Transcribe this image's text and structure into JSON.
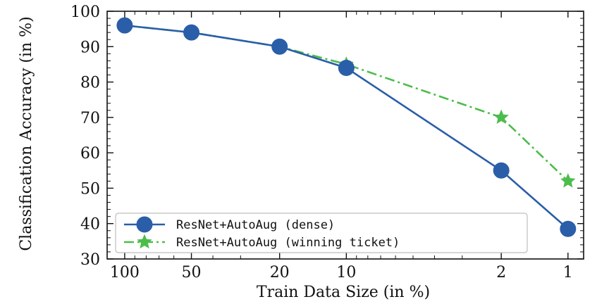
{
  "chart_data": {
    "type": "line",
    "title": "",
    "xlabel": "Train Data Size (in %)",
    "ylabel": "Classification Accuracy (in %)",
    "x_scale": "log-reversed",
    "xlim": [
      120,
      0.85
    ],
    "ylim": [
      30,
      100
    ],
    "x_ticks": [
      100,
      50,
      20,
      10,
      2,
      1
    ],
    "y_ticks": [
      30,
      40,
      50,
      60,
      70,
      80,
      90,
      100
    ],
    "grid": false,
    "legend_position": "lower-left",
    "x": [
      100,
      50,
      20,
      10,
      2,
      1
    ],
    "series": [
      {
        "name": "ResNet+AutoAug (dense)",
        "values": [
          96,
          94,
          90,
          84,
          55,
          38.5
        ],
        "color": "#2a5ea8",
        "marker": "circle",
        "line_style": "solid"
      },
      {
        "name": "ResNet+AutoAug (winning ticket)",
        "values": [
          96,
          94,
          90,
          85,
          70,
          52
        ],
        "color": "#4cbd4c",
        "marker": "star",
        "line_style": "dashdot"
      }
    ]
  }
}
